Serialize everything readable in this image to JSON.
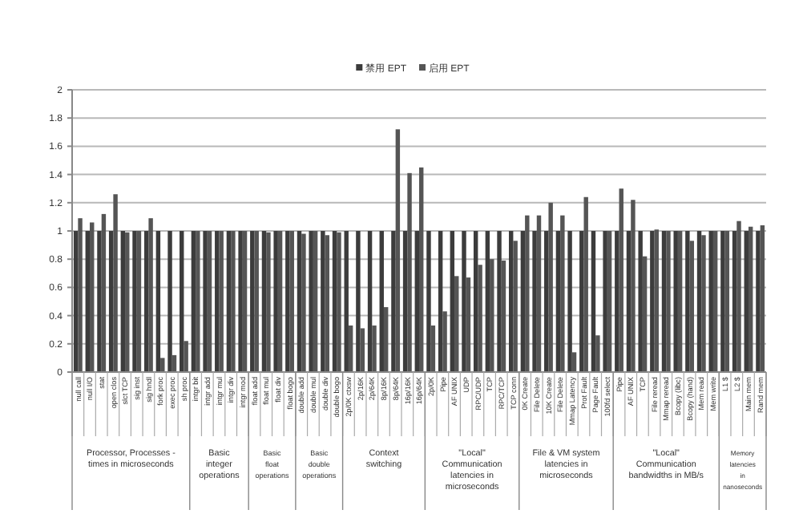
{
  "chart_data": {
    "type": "bar",
    "categories": [
      "null call",
      "null I/O",
      "stat",
      "open clos",
      "slct TCP",
      "sig inst",
      "sig hndl",
      "fork proc",
      "exec proc",
      "sh proc",
      "intgr bit",
      "intgr add",
      "intgr mul",
      "intgr div",
      "intgr mod",
      "float add",
      "float mul",
      "float div",
      "float bogo",
      "double add",
      "double mul",
      "double div",
      "double bogo",
      "2p/0K ctxsw",
      "2p/16K",
      "2p/64K",
      "8p/16K",
      "8p/64K",
      "16p/16K",
      "16p/64K",
      "2p/0K",
      "Pipe",
      "AF UNIX",
      "UDP",
      "RPC/UDP",
      "TCP",
      "RPC/TCP",
      "TCP conn",
      "0K Create",
      "File Delete",
      "10K Create",
      "File Delete",
      "Mmap Latency",
      "Prot Fault",
      "Page Fault",
      "100fd select",
      "Pipe",
      "AF UNIX",
      "TCP",
      "File reread",
      "Mmap reread",
      "Bcopy (libc)",
      "Bcopy (hand)",
      "Mem read",
      "Mem write",
      "L1 $",
      "L2 $",
      "Main mem",
      "Rand mem"
    ],
    "series": [
      {
        "name": "禁用 EPT",
        "color": "#3c3c3c",
        "values": [
          1,
          1,
          1,
          1,
          1,
          1,
          1,
          1,
          1,
          1,
          1,
          1,
          1,
          1,
          1,
          1,
          1,
          1,
          1,
          1,
          1,
          1,
          1,
          1,
          1,
          1,
          1,
          1,
          1,
          1,
          1,
          1,
          1,
          1,
          1,
          1,
          1,
          1,
          1,
          1,
          1,
          1,
          1,
          1,
          1,
          1,
          1,
          1,
          1,
          1,
          1,
          1,
          1,
          1,
          1,
          1,
          1,
          1,
          1
        ]
      },
      {
        "name": "启用 EPT",
        "color": "#555555",
        "values": [
          1.09,
          1.06,
          1.12,
          1.26,
          0.99,
          1.0,
          1.09,
          0.1,
          0.12,
          0.22,
          1.0,
          1.0,
          1.0,
          1.0,
          1.0,
          1.0,
          0.99,
          1.0,
          1.0,
          0.98,
          1.0,
          0.97,
          0.99,
          0.33,
          0.31,
          0.33,
          0.46,
          1.72,
          1.41,
          1.45,
          0.33,
          0.43,
          0.68,
          0.67,
          0.76,
          0.8,
          0.79,
          0.93,
          1.11,
          1.11,
          1.2,
          1.11,
          0.14,
          1.24,
          0.26,
          1.0,
          1.3,
          1.22,
          0.82,
          1.01,
          1.0,
          1.0,
          0.93,
          0.97,
          1.0,
          1.0,
          1.07,
          1.03,
          1.04
        ]
      }
    ],
    "ylim": [
      0,
      2
    ],
    "yticks": [
      0,
      0.2,
      0.4,
      0.6,
      0.8,
      1,
      1.2,
      1.4,
      1.6,
      1.8,
      2
    ],
    "grid": "y",
    "legend": "top",
    "annotations": [
      "Processor, Processes - times in microseconds",
      "Basic integer operations",
      "Basic float operations",
      "Basic double operations",
      "Context switching",
      "\"Local\" Communication latencies in microseconds",
      "File & VM system latencies in microseconds",
      "\"Local\" Communication bandwidths in MB/s",
      "Memory latencies in nanoseconds"
    ]
  }
}
